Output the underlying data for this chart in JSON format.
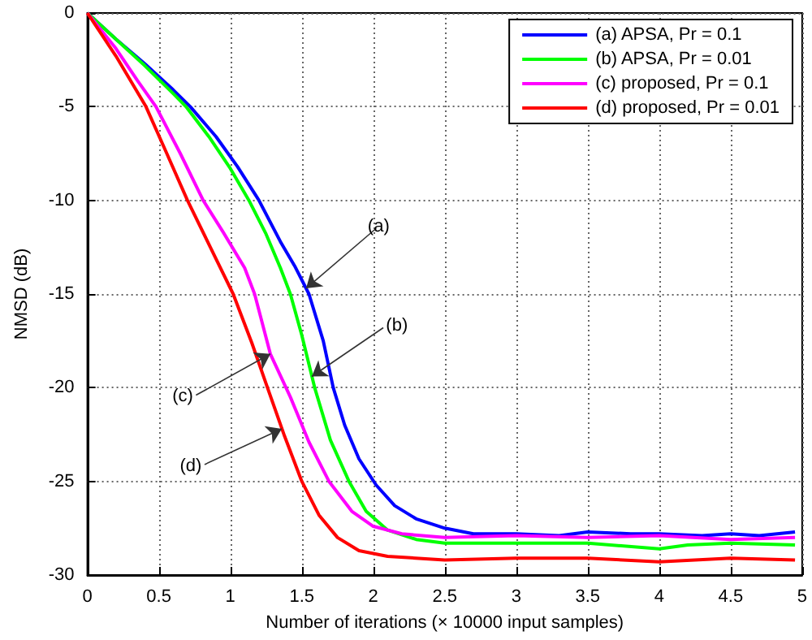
{
  "chart_data": {
    "type": "line",
    "xlabel": "Number of iterations (× 10000 input samples)",
    "ylabel": "NMSD (dB)",
    "xlim": [
      0,
      5
    ],
    "ylim": [
      -30,
      0
    ],
    "xticks": [
      0,
      0.5,
      1,
      1.5,
      2,
      2.5,
      3,
      3.5,
      4,
      4.5,
      5
    ],
    "yticks": [
      -30,
      -25,
      -20,
      -15,
      -10,
      -5,
      0
    ],
    "grid": true,
    "legend": "top right",
    "series": [
      {
        "name": "(a) APSA, Pr = 0.1",
        "color": "#0000ff",
        "x": [
          0,
          0.2,
          0.4,
          0.6,
          0.72,
          0.9,
          1.05,
          1.2,
          1.35,
          1.45,
          1.55,
          1.65,
          1.72,
          1.8,
          1.9,
          2.02,
          2.15,
          2.3,
          2.5,
          2.7,
          3,
          3.3,
          3.5,
          3.8,
          4,
          4.3,
          4.5,
          4.7,
          4.95
        ],
        "values": [
          0,
          -1.4,
          -2.7,
          -4.1,
          -5,
          -6.6,
          -8.2,
          -10,
          -12.2,
          -13.5,
          -15,
          -17.5,
          -20,
          -22,
          -23.8,
          -25.2,
          -26.3,
          -27,
          -27.5,
          -27.8,
          -27.8,
          -27.9,
          -27.7,
          -27.8,
          -27.8,
          -27.9,
          -27.8,
          -27.9,
          -27.7
        ]
      },
      {
        "name": "(b) APSA, Pr = 0.01",
        "color": "#00ff00",
        "x": [
          0,
          0.2,
          0.4,
          0.6,
          0.69,
          0.85,
          1,
          1.13,
          1.25,
          1.35,
          1.42,
          1.5,
          1.59,
          1.7,
          1.83,
          1.95,
          2.1,
          2.3,
          2.5,
          3,
          3.5,
          4,
          4.2,
          4.5,
          4.95
        ],
        "values": [
          0,
          -1.4,
          -2.8,
          -4.3,
          -5,
          -6.6,
          -8.3,
          -10,
          -11.8,
          -13.6,
          -15,
          -17.2,
          -20,
          -22.8,
          -25,
          -26.6,
          -27.6,
          -28.1,
          -28.3,
          -28.3,
          -28.3,
          -28.6,
          -28.4,
          -28.3,
          -28.4
        ]
      },
      {
        "name": "(c) proposed, Pr = 0.1",
        "color": "#ff00ff",
        "x": [
          0,
          0.2,
          0.35,
          0.48,
          0.65,
          0.81,
          0.95,
          1.1,
          1.17,
          1.28,
          1.42,
          1.55,
          1.69,
          1.85,
          2,
          2.2,
          2.5,
          3,
          3.5,
          4,
          4.5,
          4.95
        ],
        "values": [
          0,
          -1.9,
          -3.6,
          -5,
          -7.5,
          -10,
          -11.7,
          -13.6,
          -15,
          -18.2,
          -20.5,
          -22.9,
          -25,
          -26.6,
          -27.4,
          -27.8,
          -28,
          -27.9,
          -28,
          -27.9,
          -28.1,
          -28
        ]
      },
      {
        "name": "(d) proposed, Pr = 0.01",
        "color": "#ff0000",
        "x": [
          0,
          0.2,
          0.41,
          0.55,
          0.7,
          0.86,
          1.02,
          1.15,
          1.26,
          1.38,
          1.5,
          1.62,
          1.75,
          1.9,
          2.1,
          2.5,
          3,
          3.5,
          4,
          4.5,
          4.95
        ],
        "values": [
          0,
          -2.3,
          -5,
          -7.4,
          -10,
          -12.5,
          -15,
          -17.6,
          -20,
          -22.6,
          -25,
          -26.8,
          -28,
          -28.7,
          -29,
          -29.2,
          -29.1,
          -29.1,
          -29.3,
          -29.1,
          -29.2
        ]
      }
    ],
    "annotations": [
      {
        "text": "(a)",
        "x": 1.53,
        "y": -14.7
      },
      {
        "text": "(b)",
        "x": 1.57,
        "y": -19.4
      },
      {
        "text": "(c)",
        "x": 1.28,
        "y": -18.2
      },
      {
        "text": "(d)",
        "x": 1.36,
        "y": -22.2
      }
    ]
  }
}
